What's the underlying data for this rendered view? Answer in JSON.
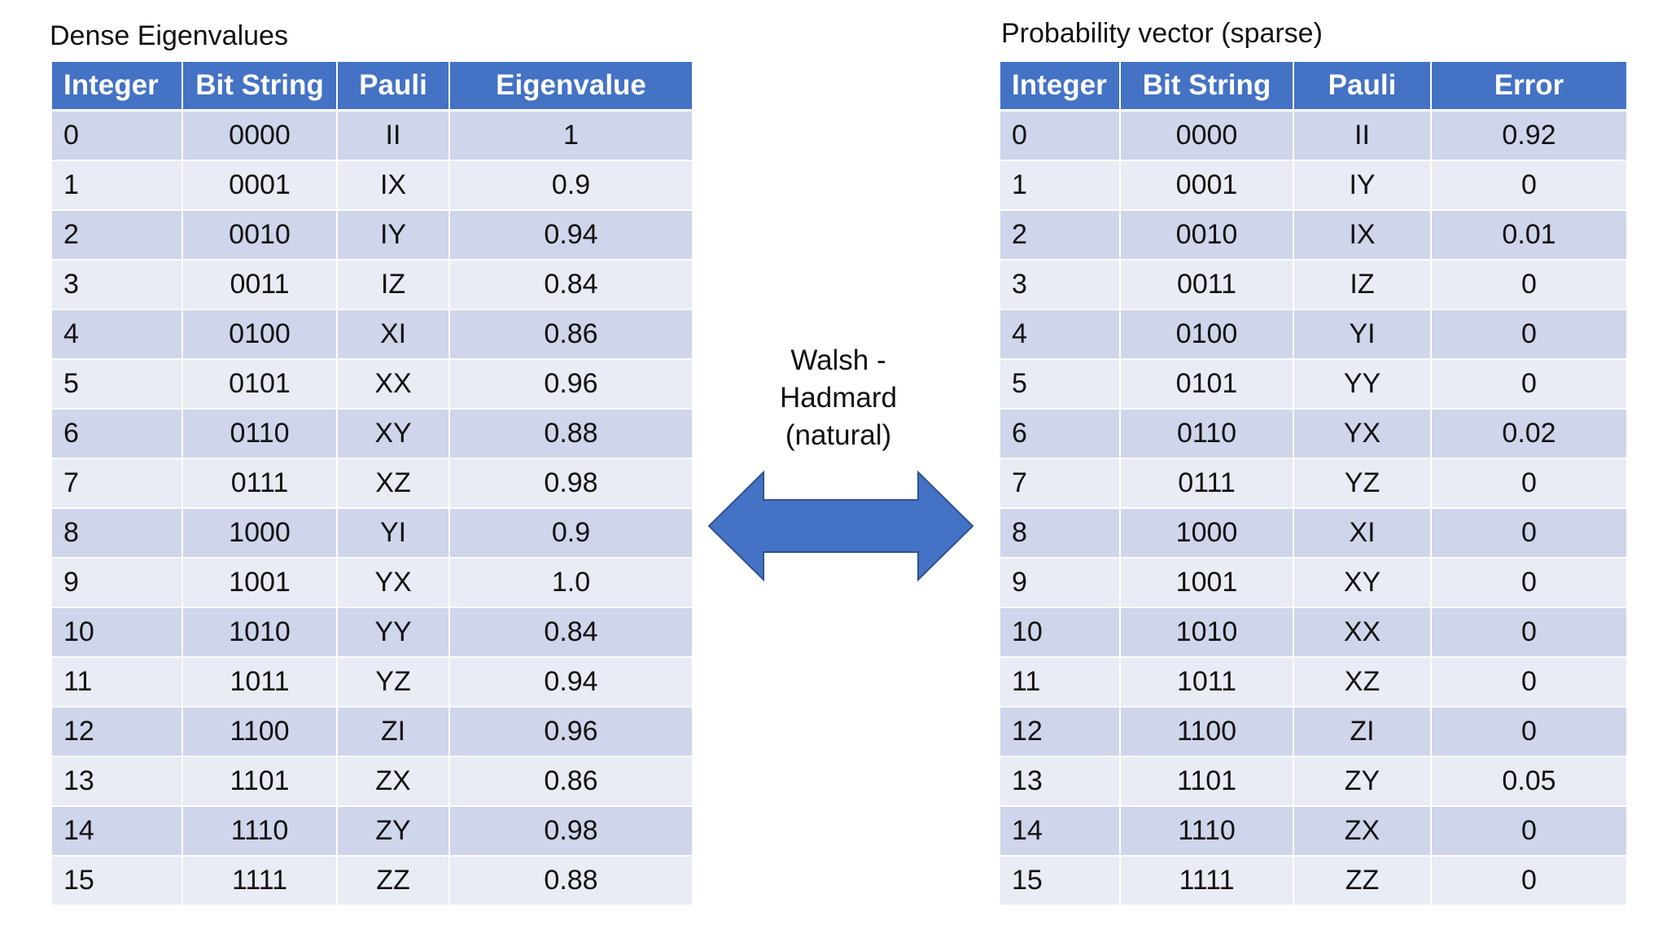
{
  "left": {
    "caption": "Dense Eigenvalues",
    "headers": [
      "Integer",
      "Bit String",
      "Pauli",
      "Eigenvalue"
    ],
    "rows": [
      [
        "0",
        "0000",
        "II",
        "1"
      ],
      [
        "1",
        "0001",
        "IX",
        "0.9"
      ],
      [
        "2",
        "0010",
        "IY",
        "0.94"
      ],
      [
        "3",
        "0011",
        "IZ",
        "0.84"
      ],
      [
        "4",
        "0100",
        "XI",
        "0.86"
      ],
      [
        "5",
        "0101",
        "XX",
        "0.96"
      ],
      [
        "6",
        "0110",
        "XY",
        "0.88"
      ],
      [
        "7",
        "0111",
        "XZ",
        "0.98"
      ],
      [
        "8",
        "1000",
        "YI",
        "0.9"
      ],
      [
        "9",
        "1001",
        "YX",
        "1.0"
      ],
      [
        "10",
        "1010",
        "YY",
        "0.84"
      ],
      [
        "11",
        "1011",
        "YZ",
        "0.94"
      ],
      [
        "12",
        "1100",
        "ZI",
        "0.96"
      ],
      [
        "13",
        "1101",
        "ZX",
        "0.86"
      ],
      [
        "14",
        "1110",
        "ZY",
        "0.98"
      ],
      [
        "15",
        "1111",
        "ZZ",
        "0.88"
      ]
    ]
  },
  "right": {
    "caption": "Probability vector (sparse)",
    "headers": [
      "Integer",
      "Bit String",
      "Pauli",
      "Error"
    ],
    "rows": [
      [
        "0",
        "0000",
        "II",
        "0.92"
      ],
      [
        "1",
        "0001",
        "IY",
        "0"
      ],
      [
        "2",
        "0010",
        "IX",
        "0.01"
      ],
      [
        "3",
        "0011",
        "IZ",
        "0"
      ],
      [
        "4",
        "0100",
        "YI",
        "0"
      ],
      [
        "5",
        "0101",
        "YY",
        "0"
      ],
      [
        "6",
        "0110",
        "YX",
        "0.02"
      ],
      [
        "7",
        "0111",
        "YZ",
        "0"
      ],
      [
        "8",
        "1000",
        "XI",
        "0"
      ],
      [
        "9",
        "1001",
        "XY",
        "0"
      ],
      [
        "10",
        "1010",
        "XX",
        "0"
      ],
      [
        "11",
        "1011",
        "XZ",
        "0"
      ],
      [
        "12",
        "1100",
        "ZI",
        "0"
      ],
      [
        "13",
        "1101",
        "ZY",
        "0.05"
      ],
      [
        "14",
        "1110",
        "ZX",
        "0"
      ],
      [
        "15",
        "1111",
        "ZZ",
        "0"
      ]
    ]
  },
  "transform": {
    "lines": [
      "Walsh -",
      "Hadmard",
      "(natural)"
    ],
    "arrow_icon": "double-headed-arrow-icon"
  },
  "colors": {
    "header_bg": "#4472c4",
    "row_dark": "#cfd5ea",
    "row_light": "#e9ebf5",
    "arrow_fill": "#4472c4",
    "arrow_stroke": "#2f528f"
  }
}
